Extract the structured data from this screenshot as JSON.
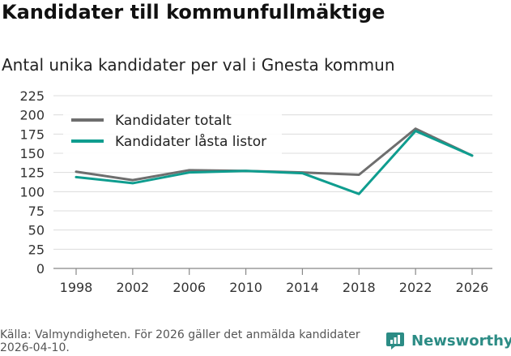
{
  "title": "Kandidater till kommunfullmäktige",
  "subtitle": "Antal unika kandidater per val i Gnesta kommun",
  "footer": {
    "source": "Källa: Valmyndigheten. För 2026 gäller det anmälda kandidater 2026-04-10."
  },
  "brand": {
    "name": "Newsworthy",
    "icon": "newsworthy-logo-icon",
    "color": "#2c8c85"
  },
  "chart_data": {
    "type": "line",
    "title": "Kandidater till kommunfullmäktige",
    "subtitle": "Antal unika kandidater per val i Gnesta kommun",
    "xlabel": "",
    "ylabel": "",
    "categories": [
      "1998",
      "2002",
      "2006",
      "2010",
      "2014",
      "2018",
      "2022",
      "2026"
    ],
    "ylim": [
      0,
      225
    ],
    "yticks": [
      0,
      25,
      50,
      75,
      100,
      125,
      150,
      175,
      200,
      225
    ],
    "grid": true,
    "legend_position": "top-left",
    "series": [
      {
        "name": "Kandidater totalt",
        "color": "#6e6e6e",
        "values": [
          126,
          115,
          128,
          127,
          125,
          122,
          182,
          147
        ]
      },
      {
        "name": "Kandidater låsta listor",
        "color": "#0f9d8f",
        "values": [
          119,
          111,
          125,
          127,
          124,
          97,
          179,
          147
        ]
      }
    ]
  }
}
